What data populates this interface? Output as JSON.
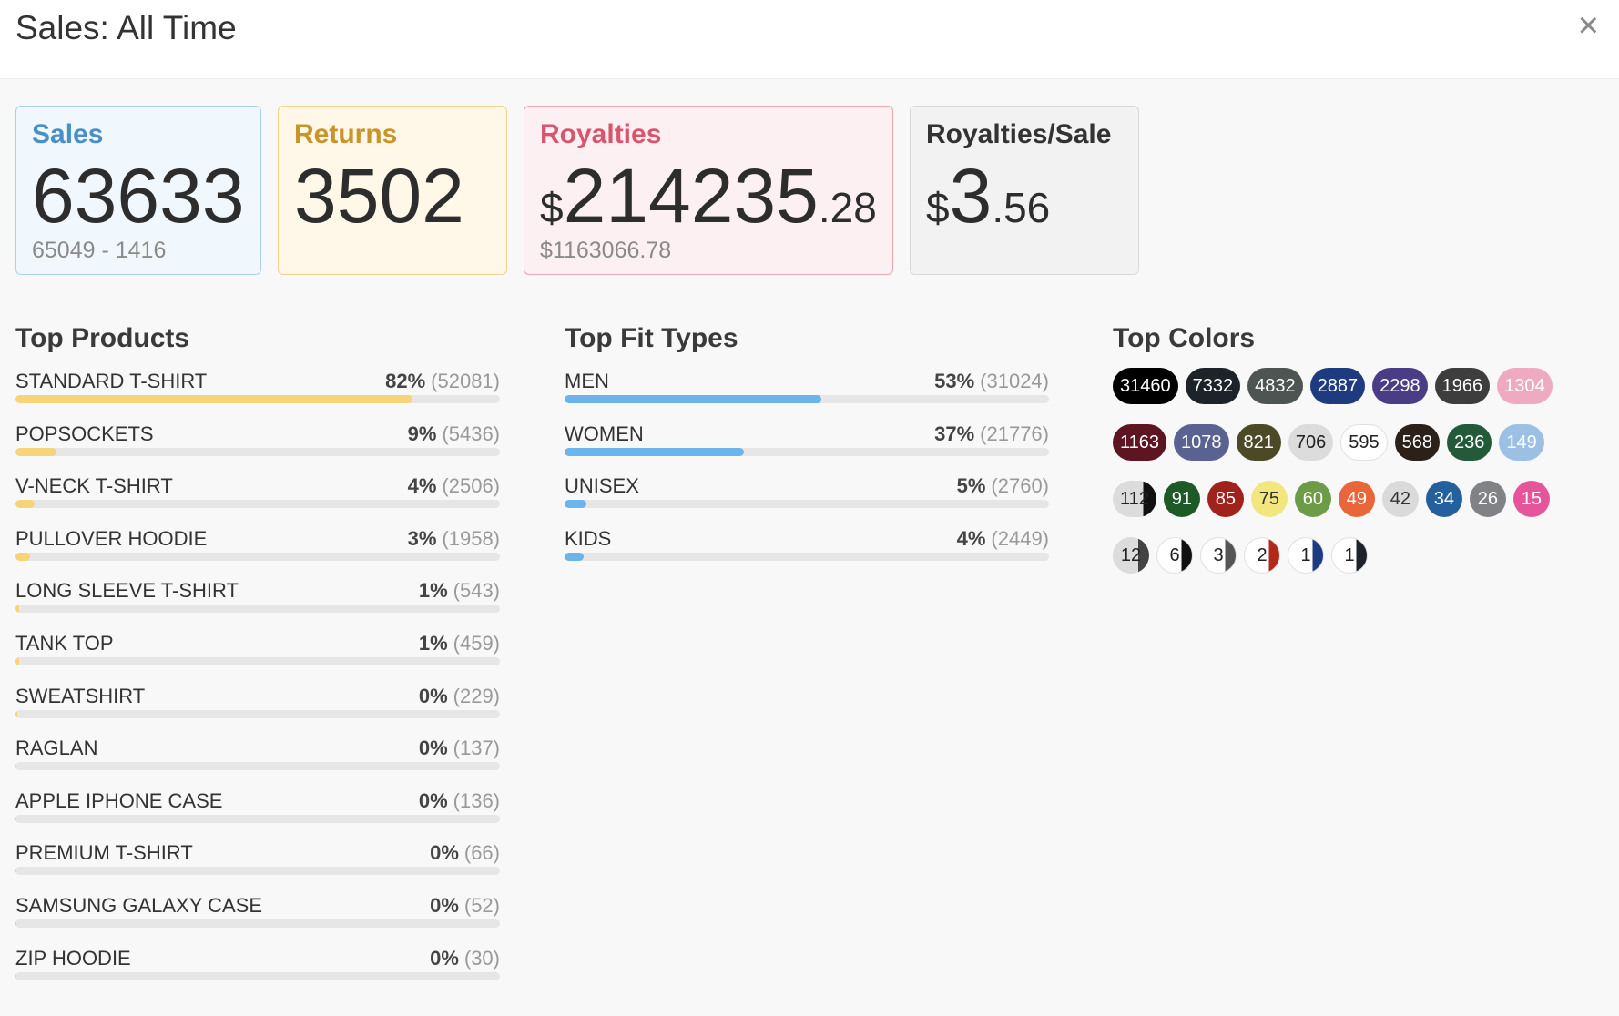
{
  "header": {
    "title": "Sales: All Time",
    "close_icon": "×"
  },
  "cards": {
    "sales": {
      "label": "Sales",
      "value": "63633",
      "sub": "65049 - 1416"
    },
    "returns": {
      "label": "Returns",
      "value": "3502"
    },
    "royalties": {
      "label": "Royalties",
      "currency": "$",
      "value_int": "214235",
      "value_dec": ".28",
      "sub": "$1163066.78"
    },
    "royalties_per_sale": {
      "label": "Royalties/Sale",
      "currency": "$",
      "value_int": "3",
      "value_dec": ".56"
    }
  },
  "top_products": {
    "title": "Top Products",
    "items": [
      {
        "name": "STANDARD T-SHIRT",
        "pct": "82%",
        "count": "(52081)",
        "share": 0.82
      },
      {
        "name": "POPSOCKETS",
        "pct": "9%",
        "count": "(5436)",
        "share": 0.085
      },
      {
        "name": "V-NECK T-SHIRT",
        "pct": "4%",
        "count": "(2506)",
        "share": 0.039
      },
      {
        "name": "PULLOVER HOODIE",
        "pct": "3%",
        "count": "(1958)",
        "share": 0.03
      },
      {
        "name": "LONG SLEEVE T-SHIRT",
        "pct": "1%",
        "count": "(543)",
        "share": 0.008
      },
      {
        "name": "TANK TOP",
        "pct": "1%",
        "count": "(459)",
        "share": 0.007
      },
      {
        "name": "SWEATSHIRT",
        "pct": "0%",
        "count": "(229)",
        "share": 0.004
      },
      {
        "name": "RAGLAN",
        "pct": "0%",
        "count": "(137)",
        "share": 0.002
      },
      {
        "name": "APPLE IPHONE CASE",
        "pct": "0%",
        "count": "(136)",
        "share": 0.002
      },
      {
        "name": "PREMIUM T-SHIRT",
        "pct": "0%",
        "count": "(66)",
        "share": 0.001
      },
      {
        "name": "SAMSUNG GALAXY CASE",
        "pct": "0%",
        "count": "(52)",
        "share": 0.001
      },
      {
        "name": "ZIP HOODIE",
        "pct": "0%",
        "count": "(30)",
        "share": 0.0005
      }
    ]
  },
  "top_fit_types": {
    "title": "Top Fit Types",
    "items": [
      {
        "name": "MEN",
        "pct": "53%",
        "count": "(31024)",
        "share": 0.53
      },
      {
        "name": "WOMEN",
        "pct": "37%",
        "count": "(21776)",
        "share": 0.37
      },
      {
        "name": "UNISEX",
        "pct": "5%",
        "count": "(2760)",
        "share": 0.045
      },
      {
        "name": "KIDS",
        "pct": "4%",
        "count": "(2449)",
        "share": 0.04
      }
    ]
  },
  "top_colors": {
    "title": "Top Colors",
    "items": [
      {
        "count": "31460",
        "bg": "#000000",
        "fg": "#ffffff"
      },
      {
        "count": "7332",
        "bg": "#1d2329",
        "fg": "#ffffff"
      },
      {
        "count": "4832",
        "bg": "#4d5452",
        "fg": "#ffffff"
      },
      {
        "count": "2887",
        "bg": "#1f3b80",
        "fg": "#ffffff"
      },
      {
        "count": "2298",
        "bg": "#4b3c86",
        "fg": "#ffffff"
      },
      {
        "count": "1966",
        "bg": "#3d3d3d",
        "fg": "#ffffff"
      },
      {
        "count": "1304",
        "bg": "#eeaac0",
        "fg": "#ffffff"
      },
      {
        "count": "1163",
        "bg": "#5d1522",
        "fg": "#ffffff"
      },
      {
        "count": "1078",
        "bg": "#5a6292",
        "fg": "#ffffff"
      },
      {
        "count": "821",
        "bg": "#4c4a26",
        "fg": "#ffffff"
      },
      {
        "count": "706",
        "bg": "#dcdcdc",
        "fg": "#222222"
      },
      {
        "count": "595",
        "bg": "#ffffff",
        "fg": "#222222",
        "border": "#e0e0e0"
      },
      {
        "count": "568",
        "bg": "#2b2118",
        "fg": "#ffffff"
      },
      {
        "count": "236",
        "bg": "#235a3a",
        "fg": "#ffffff"
      },
      {
        "count": "149",
        "bg": "#9cc0e4",
        "fg": "#ffffff"
      },
      {
        "count": "112",
        "bg": "linear-gradient(90deg, #dcdcdc 70%, #111111 70%)",
        "fg": "#222222"
      },
      {
        "count": "91",
        "bg": "#1e5a28",
        "fg": "#ffffff"
      },
      {
        "count": "85",
        "bg": "#a0231b",
        "fg": "#ffffff"
      },
      {
        "count": "75",
        "bg": "#f2e77e",
        "fg": "#333333"
      },
      {
        "count": "60",
        "bg": "#6e9b48",
        "fg": "#ffffff"
      },
      {
        "count": "49",
        "bg": "#e9653a",
        "fg": "#ffffff"
      },
      {
        "count": "42",
        "bg": "#dadada",
        "fg": "#333333"
      },
      {
        "count": "34",
        "bg": "#24609e",
        "fg": "#ffffff"
      },
      {
        "count": "26",
        "bg": "#808285",
        "fg": "#ffffff"
      },
      {
        "count": "15",
        "bg": "#e6559b",
        "fg": "#ffffff"
      },
      {
        "count": "12",
        "bg": "linear-gradient(90deg, #dcdcdc 70%, #444444 70%)",
        "fg": "#222222"
      },
      {
        "count": "6",
        "bg": "linear-gradient(90deg, #ffffff 70%, #111111 70%)",
        "fg": "#222222",
        "border": "#e0e0e0"
      },
      {
        "count": "3",
        "bg": "linear-gradient(90deg, #ffffff 70%, #555555 70%)",
        "fg": "#222222",
        "border": "#e0e0e0"
      },
      {
        "count": "2",
        "bg": "linear-gradient(90deg, #ffffff 70%, #b3271c 70%)",
        "fg": "#222222",
        "border": "#e0e0e0"
      },
      {
        "count": "1",
        "bg": "linear-gradient(90deg, #ffffff 70%, #1f3b80 70%)",
        "fg": "#222222",
        "border": "#e0e0e0"
      },
      {
        "count": "1",
        "bg": "linear-gradient(90deg, #ffffff 70%, #1d2329 70%)",
        "fg": "#222222",
        "border": "#e0e0e0"
      }
    ]
  }
}
